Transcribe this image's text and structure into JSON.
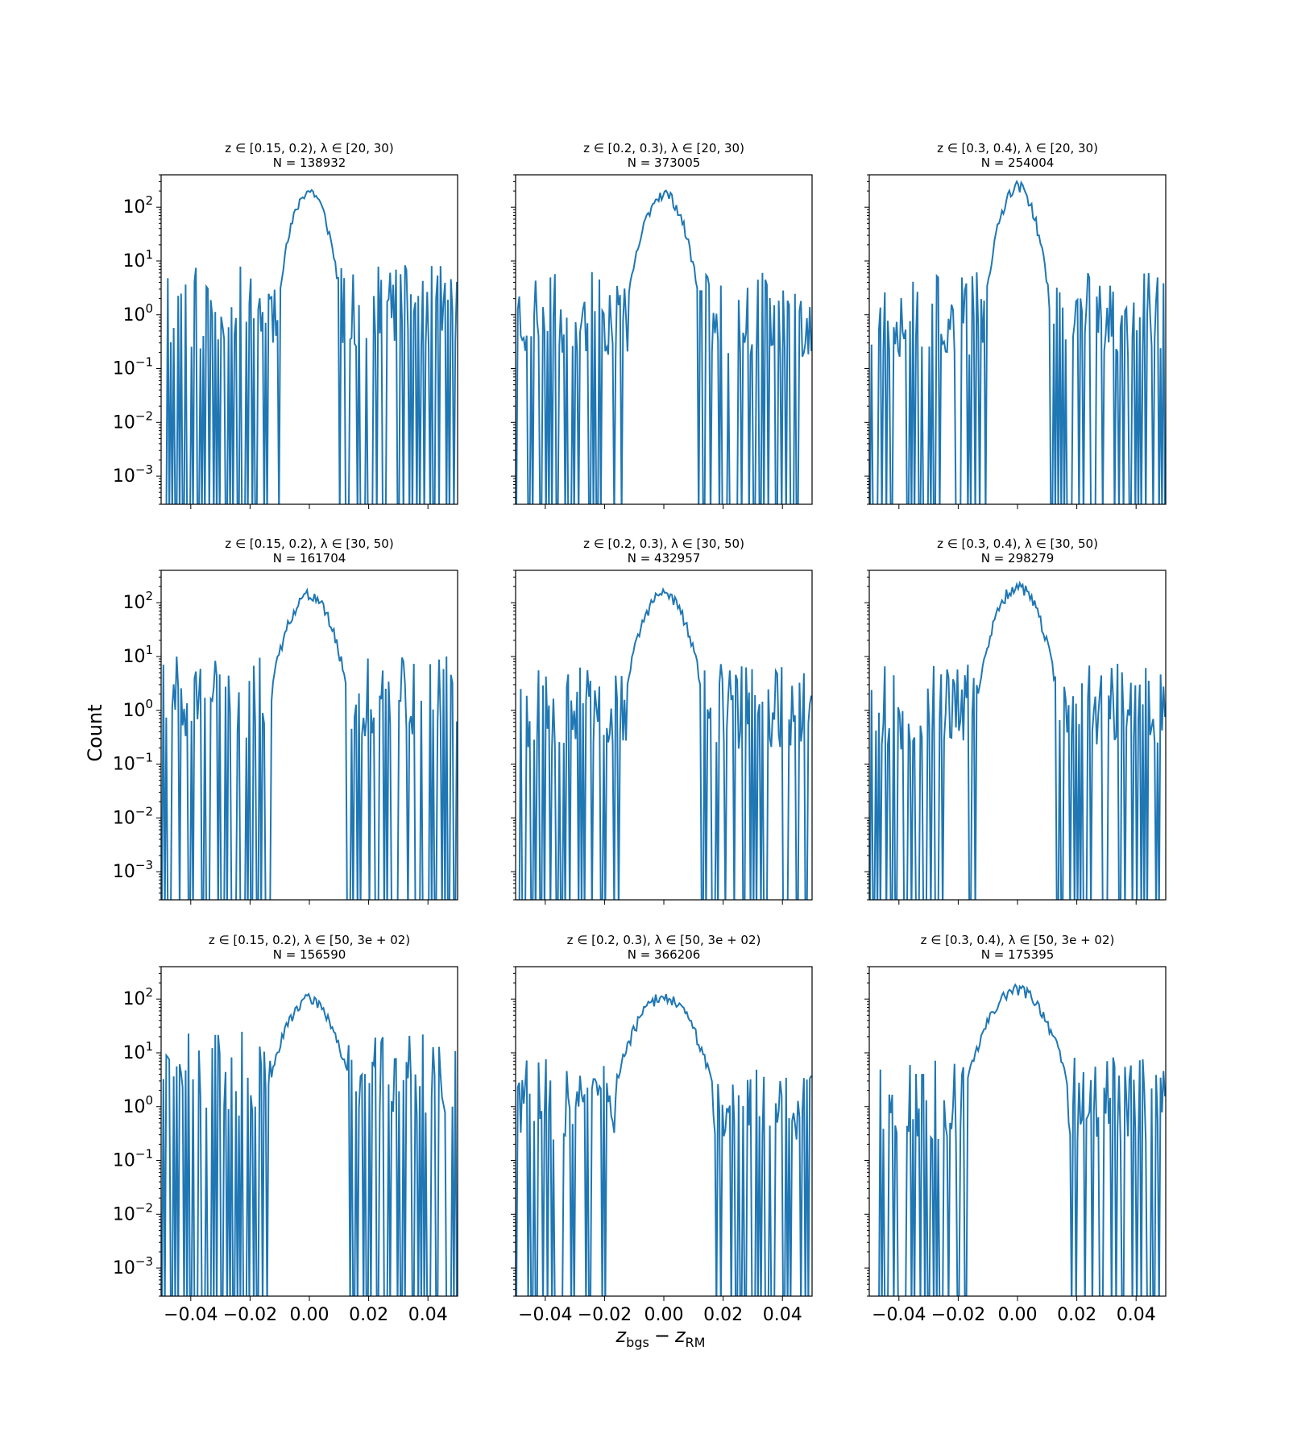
{
  "figure": {
    "ylabel": "Count",
    "xlabel_main": "z",
    "xlabel_sub1": "bgs",
    "xlabel_minus": "−",
    "xlabel_sub2": "RM"
  },
  "chart_data": [
    {
      "type": "line",
      "title": "z ∈ [0.15, 0.2), λ ∈ [20, 30)",
      "subtitle": "N = 138932",
      "peak": 200,
      "floor_prob": 0.42,
      "sigma": 0.0035,
      "seed": 11,
      "noise_level": 1.6,
      "xlim": [
        -0.05,
        0.05
      ],
      "ylim": [
        0.0003,
        400
      ],
      "yscale": "log",
      "series_color": "#1f77b4"
    },
    {
      "type": "line",
      "title": "z ∈ [0.2, 0.3), λ ∈ [20, 30)",
      "subtitle": "N = 373005",
      "peak": 180,
      "floor_prob": 0.35,
      "sigma": 0.004,
      "seed": 23,
      "noise_level": 1.2,
      "xlim": [
        -0.05,
        0.05
      ],
      "ylim": [
        0.0003,
        400
      ],
      "yscale": "log",
      "series_color": "#1f77b4"
    },
    {
      "type": "line",
      "title": "z ∈ [0.3, 0.4), λ ∈ [20, 30)",
      "subtitle": "N = 254004",
      "peak": 250,
      "floor_prob": 0.4,
      "sigma": 0.0035,
      "seed": 37,
      "noise_level": 1.2,
      "xlim": [
        -0.05,
        0.05
      ],
      "ylim": [
        0.0003,
        400
      ],
      "yscale": "log",
      "series_color": "#1f77b4"
    },
    {
      "type": "line",
      "title": "z ∈ [0.15, 0.2), λ ∈ [30, 50)",
      "subtitle": "N = 161704",
      "peak": 140,
      "floor_prob": 0.45,
      "sigma": 0.0045,
      "seed": 41,
      "noise_level": 2.0,
      "xlim": [
        -0.05,
        0.05
      ],
      "ylim": [
        0.0003,
        400
      ],
      "yscale": "log",
      "series_color": "#1f77b4"
    },
    {
      "type": "line",
      "title": "z ∈ [0.2, 0.3), λ ∈ [30, 50)",
      "subtitle": "N = 432957",
      "peak": 150,
      "floor_prob": 0.3,
      "sigma": 0.0045,
      "seed": 53,
      "noise_level": 1.4,
      "xlim": [
        -0.05,
        0.05
      ],
      "ylim": [
        0.0003,
        400
      ],
      "yscale": "log",
      "series_color": "#1f77b4"
    },
    {
      "type": "line",
      "title": "z ∈ [0.3, 0.4), λ ∈ [30, 50)",
      "subtitle": "N = 298279",
      "peak": 200,
      "floor_prob": 0.35,
      "sigma": 0.0045,
      "seed": 67,
      "noise_level": 1.4,
      "xlim": [
        -0.05,
        0.05
      ],
      "ylim": [
        0.0003,
        400
      ],
      "yscale": "log",
      "series_color": "#1f77b4"
    },
    {
      "type": "line",
      "title": "z ∈ [0.15, 0.2), λ ∈ [50, 3e + 02)",
      "subtitle": "N = 156590",
      "peak": 100,
      "floor_prob": 0.48,
      "sigma": 0.005,
      "seed": 71,
      "noise_level": 5.0,
      "xlim": [
        -0.05,
        0.05
      ],
      "ylim": [
        0.0003,
        400
      ],
      "yscale": "log",
      "series_color": "#1f77b4"
    },
    {
      "type": "line",
      "title": "z ∈ [0.2, 0.3), λ ∈ [50, 3e + 02)",
      "subtitle": "N = 366206",
      "peak": 110,
      "floor_prob": 0.3,
      "sigma": 0.006,
      "seed": 83,
      "noise_level": 1.6,
      "xlim": [
        -0.05,
        0.05
      ],
      "ylim": [
        0.0003,
        400
      ],
      "yscale": "log",
      "series_color": "#1f77b4"
    },
    {
      "type": "line",
      "title": "z ∈ [0.3, 0.4), λ ∈ [50, 3e + 02)",
      "subtitle": "N = 175395",
      "peak": 150,
      "floor_prob": 0.38,
      "sigma": 0.006,
      "seed": 97,
      "noise_level": 1.6,
      "xlim": [
        -0.05,
        0.05
      ],
      "ylim": [
        0.0003,
        400
      ],
      "yscale": "log",
      "series_color": "#1f77b4"
    }
  ],
  "axes": {
    "xticks": [
      -0.04,
      -0.02,
      0.0,
      0.02,
      0.04
    ],
    "xtick_labels": [
      "−0.04",
      "−0.02",
      "0.00",
      "0.02",
      "0.04"
    ],
    "ytick_exponents": [
      2,
      1,
      0,
      -1,
      -2,
      -3
    ]
  }
}
